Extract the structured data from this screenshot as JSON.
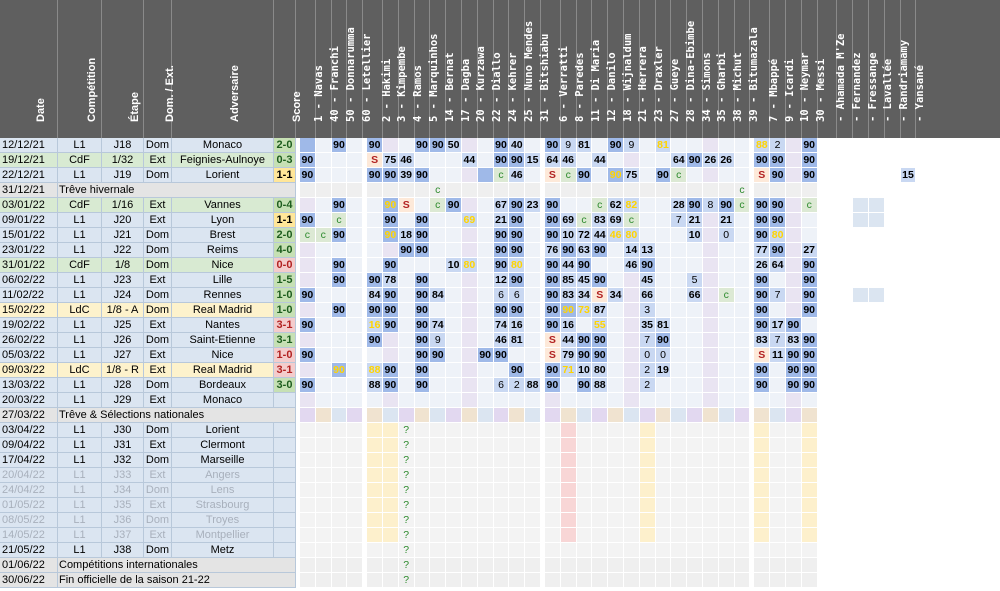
{
  "columns": {
    "date": "Date",
    "comp": "Compétition",
    "etape": "Étape",
    "dom": "Dom. / Ext.",
    "adv": "Adversaire",
    "score": "Score"
  },
  "players": [
    "1 - Navas",
    "40 - Franchi",
    "50 - Donnarumma",
    "60 - Letellier",
    "2 - Hakimi",
    "3 - Kimpembe",
    "4 - Ramos",
    "5 - Marquinhos",
    "14 - Bernat",
    "17 - Dagba",
    "20 - Kurzawa",
    "22 - Diallo",
    "24 - Kehrer",
    "25 - Nuno Mendes",
    "31 - Bitshiabu",
    "6 - Verratti",
    "8 - Paredes",
    "11 - Di Maria",
    "12 - Danilo",
    "18 - Wijnaldum",
    "21 - Herrera",
    "23 - Draxler",
    "27 - Gueye",
    "28 - Dina-Ebimbe",
    "34 - Simons",
    "35 - Gharbi",
    "38 - Michut",
    "39 - Bitumazala",
    "7 - Mbappé",
    "9 - Icardi",
    "10 - Neymar",
    "30 - Messi",
    "- Ahamada M'Ze",
    "- Fernandez",
    "- Fressange",
    "- Lavallée",
    "- Randriamamy",
    "- Yansané"
  ],
  "rows": [
    {
      "date": "12/12/21",
      "comp": "L1",
      "etape": "J18",
      "dom": "Dom",
      "adv": "Monaco",
      "score": "2-0",
      "res": "w",
      "cells": {
        "0": "",
        "2": "90",
        "4": "90",
        "7": "90",
        "8": "90",
        "9": "50",
        "12": "90",
        "13": "40",
        "15": "90",
        "16": "9",
        "17": "81",
        "19": "90",
        "20": "9",
        "22": "81",
        "28": "88",
        "29": "2",
        "31": "90"
      }
    },
    {
      "date": "19/12/21",
      "comp": "CdF",
      "etape": "1/32",
      "dom": "Ext",
      "adv": "Feignies-Aulnoye",
      "score": "0-3",
      "res": "w",
      "cells": {
        "0": "90",
        "4": "S",
        "5": "75",
        "6": "46",
        "10": "44",
        "12": "90",
        "13": "90",
        "14": "15",
        "15": "64",
        "16": "46",
        "18": "44",
        "23": "64",
        "24": "90",
        "25": "26",
        "26": "26",
        "28": "90",
        "29": "90",
        "31": "90"
      }
    },
    {
      "date": "22/12/21",
      "comp": "L1",
      "etape": "J19",
      "dom": "Dom",
      "adv": "Lorient",
      "score": "1-1",
      "res": "d",
      "cells": {
        "0": "90",
        "4": "90",
        "5": "90",
        "6": "39",
        "7": "90",
        "11": "",
        "12": "c",
        "13": "46",
        "15": "S",
        "16": "c",
        "17": "90",
        "19": "90",
        "20": "75",
        "22": "90",
        "23": "c",
        "28": "S",
        "29": "90",
        "31": "90",
        "37": "15"
      }
    },
    {
      "type": "note",
      "date": "31/12/21",
      "text": "Trêve hivernale",
      "cells": {
        "8": "c",
        "27": "c"
      }
    },
    {
      "date": "03/01/22",
      "comp": "CdF",
      "etape": "1/16",
      "dom": "Ext",
      "adv": "Vannes",
      "score": "0-4",
      "res": "w",
      "cells": {
        "2": "90",
        "5": "90",
        "6": "S",
        "8": "c",
        "9": "90",
        "12": "67",
        "13": "90",
        "14": "23",
        "15": "90",
        "18": "c",
        "19": "62",
        "20": "82",
        "23": "28",
        "24": "90",
        "25": "8",
        "26": "90",
        "27": "c",
        "28": "90",
        "29": "90",
        "31": "c"
      }
    },
    {
      "date": "09/01/22",
      "comp": "L1",
      "etape": "J20",
      "dom": "Ext",
      "adv": "Lyon",
      "score": "1-1",
      "res": "d",
      "cells": {
        "0": "90",
        "2": "c",
        "5": "90",
        "7": "90",
        "10": "69",
        "12": "21",
        "13": "90",
        "15": "90",
        "16": "69",
        "17": "c",
        "18": "83",
        "19": "69",
        "20": "c",
        "23": "7",
        "24": "21",
        "26": "21",
        "28": "90",
        "29": "90"
      }
    },
    {
      "date": "15/01/22",
      "comp": "L1",
      "etape": "J21",
      "dom": "Dom",
      "adv": "Brest",
      "score": "2-0",
      "res": "w",
      "cells": {
        "0": "c",
        "1": "c",
        "2": "90",
        "5": "90",
        "6": "18",
        "7": "90",
        "12": "90",
        "13": "90",
        "15": "90",
        "16": "10",
        "17": "72",
        "18": "44",
        "19": "46",
        "20": "80",
        "24": "10",
        "26": "0",
        "28": "90",
        "29": "80"
      }
    },
    {
      "date": "23/01/22",
      "comp": "L1",
      "etape": "J22",
      "dom": "Dom",
      "adv": "Reims",
      "score": "4-0",
      "res": "w",
      "cells": {
        "6": "90",
        "7": "90",
        "12": "90",
        "13": "90",
        "15": "76",
        "16": "90",
        "17": "63",
        "18": "90",
        "20": "14",
        "21": "13",
        "28": "77",
        "29": "90",
        "31": "27"
      }
    },
    {
      "date": "31/01/22",
      "comp": "CdF",
      "etape": "1/8",
      "dom": "Dom",
      "adv": "Nice",
      "score": "0-0",
      "res": "l",
      "cells": {
        "2": "90",
        "5": "90",
        "9": "10",
        "10": "80",
        "12": "90",
        "13": "80",
        "15": "90",
        "16": "44",
        "17": "90",
        "20": "46",
        "21": "90",
        "28": "26",
        "29": "64",
        "31": "90"
      }
    },
    {
      "date": "06/02/22",
      "comp": "L1",
      "etape": "J23",
      "dom": "Ext",
      "adv": "Lille",
      "score": "1-5",
      "res": "w",
      "cells": {
        "2": "90",
        "4": "90",
        "5": "78",
        "7": "90",
        "12": "12",
        "13": "90",
        "15": "90",
        "16": "85",
        "17": "45",
        "18": "90",
        "21": "45",
        "24": "5",
        "28": "90",
        "31": "90"
      }
    },
    {
      "date": "11/02/22",
      "comp": "L1",
      "etape": "J24",
      "dom": "Dom",
      "adv": "Rennes",
      "score": "1-0",
      "res": "w",
      "cells": {
        "0": "90",
        "4": "84",
        "5": "90",
        "7": "90",
        "8": "84",
        "12": "6",
        "13": "6",
        "15": "90",
        "16": "83",
        "17": "34",
        "18": "S",
        "19": "34",
        "21": "66",
        "24": "66",
        "26": "c",
        "28": "90",
        "29": "7",
        "31": "90"
      }
    },
    {
      "date": "15/02/22",
      "comp": "LdC",
      "etape": "1/8 - A",
      "dom": "Dom",
      "adv": "Real Madrid",
      "score": "1-0",
      "res": "w",
      "cells": {
        "2": "90",
        "4": "90",
        "5": "90",
        "7": "90",
        "12": "90",
        "13": "90",
        "15": "90",
        "16": "90",
        "17": "73",
        "18": "87",
        "21": "3",
        "28": "90",
        "31": "90"
      }
    },
    {
      "date": "19/02/22",
      "comp": "L1",
      "etape": "J25",
      "dom": "Ext",
      "adv": "Nantes",
      "score": "3-1",
      "res": "l",
      "cells": {
        "0": "90",
        "4": "16",
        "5": "90",
        "7": "90",
        "8": "74",
        "12": "74",
        "13": "16",
        "15": "90",
        "16": "16",
        "18": "55",
        "21": "35",
        "22": "81",
        "28": "90",
        "29": "17",
        "30": "90"
      }
    },
    {
      "date": "26/02/22",
      "comp": "L1",
      "etape": "J26",
      "dom": "Dom",
      "adv": "Saint-Etienne",
      "score": "3-1",
      "res": "w",
      "cells": {
        "4": "90",
        "7": "90",
        "8": "9",
        "12": "46",
        "13": "81",
        "15": "S",
        "16": "44",
        "17": "90",
        "18": "90",
        "21": "7",
        "22": "90",
        "28": "83",
        "29": "7",
        "30": "83",
        "31": "90"
      }
    },
    {
      "date": "05/03/22",
      "comp": "L1",
      "etape": "J27",
      "dom": "Ext",
      "adv": "Nice",
      "score": "1-0",
      "res": "l",
      "cells": {
        "0": "90",
        "7": "90",
        "8": "90",
        "11": "90",
        "12": "90",
        "15": "S",
        "16": "79",
        "17": "90",
        "18": "90",
        "21": "0",
        "22": "0",
        "28": "S",
        "29": "11",
        "30": "90",
        "31": "90"
      }
    },
    {
      "date": "09/03/22",
      "comp": "LdC",
      "etape": "1/8 - R",
      "dom": "Ext",
      "adv": "Real Madrid",
      "score": "3-1",
      "res": "l",
      "cells": {
        "2": "90",
        "4": "88",
        "5": "90",
        "7": "90",
        "13": "90",
        "15": "90",
        "16": "71",
        "17": "10",
        "18": "80",
        "21": "2",
        "22": "19",
        "28": "90",
        "30": "90",
        "31": "90"
      }
    },
    {
      "date": "13/03/22",
      "comp": "L1",
      "etape": "J28",
      "dom": "Dom",
      "adv": "Bordeaux",
      "score": "3-0",
      "res": "w",
      "cells": {
        "0": "90",
        "4": "88",
        "5": "90",
        "7": "90",
        "12": "6",
        "13": "2",
        "14": "88",
        "15": "90",
        "17": "90",
        "18": "88",
        "21": "2",
        "28": "90",
        "30": "90",
        "31": "90"
      }
    },
    {
      "date": "20/03/22",
      "comp": "L1",
      "etape": "J29",
      "dom": "Ext",
      "adv": "Monaco",
      "score": "",
      "res": "",
      "cells": {}
    },
    {
      "type": "note",
      "date": "27/03/22",
      "text": "Trêve & Sélections nationales",
      "cells": {}
    },
    {
      "date": "03/04/22",
      "comp": "L1",
      "etape": "J30",
      "dom": "Dom",
      "adv": "Lorient",
      "score": "",
      "res": "",
      "cells": {
        "6": "?"
      }
    },
    {
      "date": "09/04/22",
      "comp": "L1",
      "etape": "J31",
      "dom": "Ext",
      "adv": "Clermont",
      "score": "",
      "res": "",
      "cells": {
        "6": "?"
      }
    },
    {
      "date": "17/04/22",
      "comp": "L1",
      "etape": "J32",
      "dom": "Dom",
      "adv": "Marseille",
      "score": "",
      "res": "",
      "cells": {
        "6": "?"
      }
    },
    {
      "date": "20/04/22",
      "comp": "L1",
      "etape": "J33",
      "dom": "Ext",
      "adv": "Angers",
      "score": "",
      "res": "",
      "dim": true,
      "cells": {
        "6": "?"
      }
    },
    {
      "date": "24/04/22",
      "comp": "L1",
      "etape": "J34",
      "dom": "Dom",
      "adv": "Lens",
      "score": "",
      "res": "",
      "dim": true,
      "cells": {
        "6": "?"
      }
    },
    {
      "date": "01/05/22",
      "comp": "L1",
      "etape": "J35",
      "dom": "Ext",
      "adv": "Strasbourg",
      "score": "",
      "res": "",
      "dim": true,
      "cells": {
        "6": "?"
      }
    },
    {
      "date": "08/05/22",
      "comp": "L1",
      "etape": "J36",
      "dom": "Dom",
      "adv": "Troyes",
      "score": "",
      "res": "",
      "dim": true,
      "cells": {
        "6": "?"
      }
    },
    {
      "date": "14/05/22",
      "comp": "L1",
      "etape": "J37",
      "dom": "Ext",
      "adv": "Montpellier",
      "score": "",
      "res": "",
      "dim": true,
      "cells": {
        "6": "?"
      }
    },
    {
      "date": "21/05/22",
      "comp": "L1",
      "etape": "J38",
      "dom": "Dom",
      "adv": "Metz",
      "score": "",
      "res": "",
      "cells": {
        "6": "?"
      }
    },
    {
      "type": "note",
      "date": "01/06/22",
      "text": "Compétitions internationales",
      "cells": {
        "6": "?"
      }
    },
    {
      "type": "note",
      "date": "30/06/22",
      "text": "Fin officielle de la saison 21-22",
      "cells": {
        "6": "?"
      }
    }
  ],
  "colors": {
    "header": "#5f5f5f",
    "rowL1": "#dbe5f1",
    "rowCup": "#d8ead2",
    "rowLdC": "#fdf2cc",
    "note": "#e4e4e4",
    "win": "#c6e0b4",
    "draw": "#ffe699",
    "loss": "#f4cccc",
    "played": "#9fb9e8",
    "sub": "#c9d8f2",
    "bench": "#dce9d4",
    "future": "#ffffff",
    "yellowTxt": "#ffd400",
    "redTxt": "#b22222"
  }
}
